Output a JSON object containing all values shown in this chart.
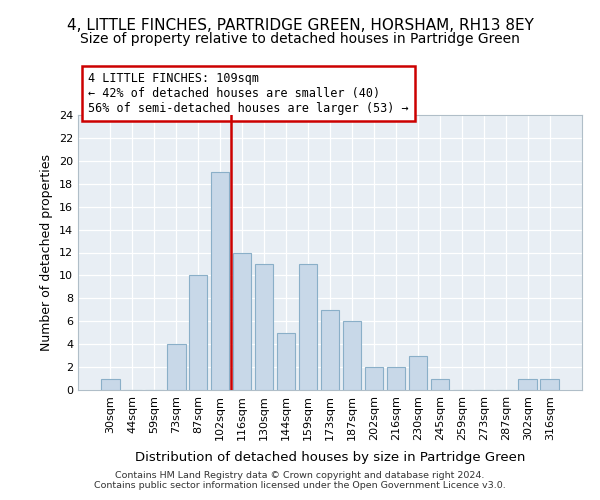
{
  "title": "4, LITTLE FINCHES, PARTRIDGE GREEN, HORSHAM, RH13 8EY",
  "subtitle": "Size of property relative to detached houses in Partridge Green",
  "xlabel": "Distribution of detached houses by size in Partridge Green",
  "ylabel": "Number of detached properties",
  "categories": [
    "30sqm",
    "44sqm",
    "59sqm",
    "73sqm",
    "87sqm",
    "102sqm",
    "116sqm",
    "130sqm",
    "144sqm",
    "159sqm",
    "173sqm",
    "187sqm",
    "202sqm",
    "216sqm",
    "230sqm",
    "245sqm",
    "259sqm",
    "273sqm",
    "287sqm",
    "302sqm",
    "316sqm"
  ],
  "values": [
    1,
    0,
    0,
    4,
    10,
    19,
    12,
    11,
    5,
    11,
    7,
    6,
    2,
    2,
    3,
    1,
    0,
    0,
    0,
    1,
    1
  ],
  "bar_color": "#c8d8e8",
  "bar_edgecolor": "#8aafc8",
  "vline_x": 5.5,
  "vline_color": "#cc0000",
  "annotation_line1": "4 LITTLE FINCHES: 109sqm",
  "annotation_line2": "← 42% of detached houses are smaller (40)",
  "annotation_line3": "56% of semi-detached houses are larger (53) →",
  "annotation_box_edgecolor": "#cc0000",
  "annotation_box_facecolor": "white",
  "ylim": [
    0,
    24
  ],
  "yticks": [
    0,
    2,
    4,
    6,
    8,
    10,
    12,
    14,
    16,
    18,
    20,
    22,
    24
  ],
  "bg_color": "#e8eef4",
  "grid_color": "#ffffff",
  "footer": "Contains HM Land Registry data © Crown copyright and database right 2024.\nContains public sector information licensed under the Open Government Licence v3.0.",
  "title_fontsize": 11,
  "subtitle_fontsize": 10,
  "tick_fontsize": 8,
  "ylabel_fontsize": 9,
  "xlabel_fontsize": 9.5
}
